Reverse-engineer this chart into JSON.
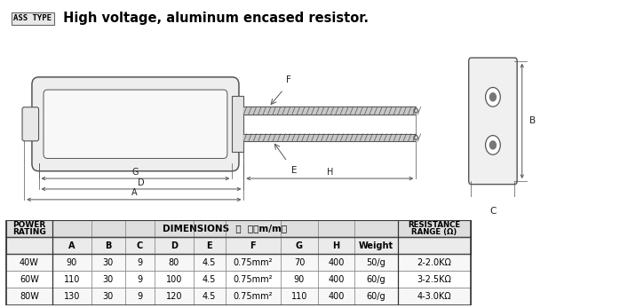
{
  "title_prefix": "ASS TYPE",
  "title_main": " High voltage, aluminum encased resistor.",
  "table_header2": [
    "A",
    "B",
    "C",
    "D",
    "E",
    "F",
    "G",
    "H",
    "Weight"
  ],
  "table_rows": [
    [
      "40W",
      "90",
      "30",
      "9",
      "80",
      "4.5",
      "0.75mm²",
      "70",
      "400",
      "50/g",
      "2-2.0KΩ"
    ],
    [
      "60W",
      "110",
      "30",
      "9",
      "100",
      "4.5",
      "0.75mm²",
      "90",
      "400",
      "60/g",
      "3-2.5KΩ"
    ],
    [
      "80W",
      "130",
      "30",
      "9",
      "120",
      "4.5",
      "0.75mm²",
      "110",
      "400",
      "60/g",
      "4-3.0KΩ"
    ]
  ],
  "lc": "#555555",
  "fc": "#f2f2f2"
}
